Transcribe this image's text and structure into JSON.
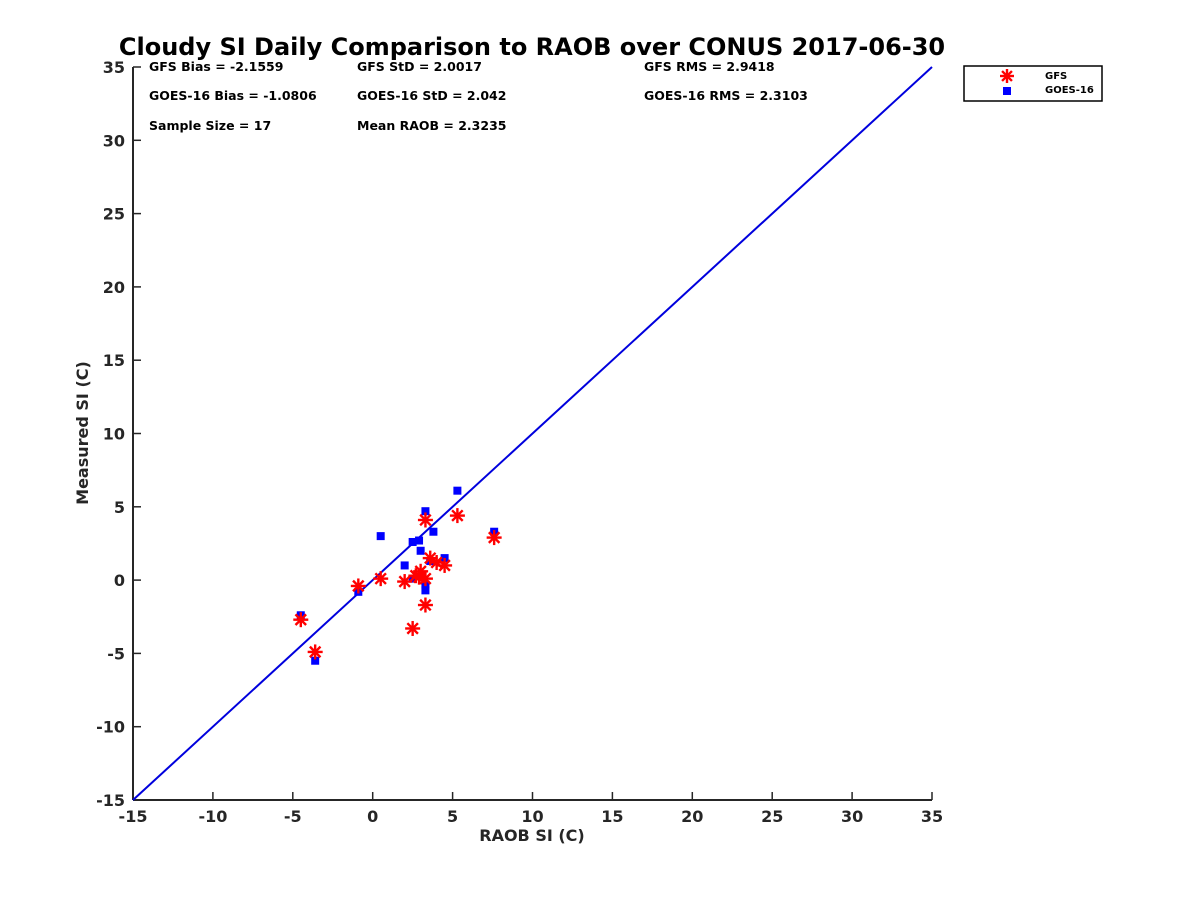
{
  "chart_data": {
    "type": "scatter",
    "title": "Cloudy SI Daily Comparison to RAOB over CONUS 2017-06-30",
    "xlabel": "RAOB SI (C)",
    "ylabel": "Measured SI (C)",
    "xlim": [
      -15,
      35
    ],
    "ylim": [
      -15,
      35
    ],
    "xticks": [
      -15,
      -10,
      -5,
      0,
      5,
      10,
      15,
      20,
      25,
      30,
      35
    ],
    "yticks": [
      -15,
      -10,
      -5,
      0,
      5,
      10,
      15,
      20,
      25,
      30,
      35
    ],
    "one_to_one_line": {
      "from": [
        -15,
        -15
      ],
      "to": [
        35,
        35
      ],
      "color": "#0000dd"
    },
    "stats": [
      {
        "label": "GFS Bias = -2.1559",
        "row": 0,
        "col": 0
      },
      {
        "label": "GFS StD = 2.0017",
        "row": 0,
        "col": 1
      },
      {
        "label": "GFS RMS = 2.9418",
        "row": 0,
        "col": 2
      },
      {
        "label": "GOES-16 Bias = -1.0806",
        "row": 1,
        "col": 0
      },
      {
        "label": "GOES-16 StD = 2.042",
        "row": 1,
        "col": 1
      },
      {
        "label": "GOES-16 RMS = 2.3103",
        "row": 1,
        "col": 2
      },
      {
        "label": "Sample Size = 17",
        "row": 2,
        "col": 0
      },
      {
        "label": "Mean RAOB = 2.3235",
        "row": 2,
        "col": 1
      }
    ],
    "legend": {
      "position": "top-right-outside",
      "entries": [
        "GFS",
        "GOES-16"
      ]
    },
    "series": [
      {
        "name": "GFS",
        "marker": "asterisk",
        "color": "#ff0000",
        "points": [
          [
            -4.5,
            -2.7
          ],
          [
            -3.6,
            -4.9
          ],
          [
            -0.9,
            -0.4
          ],
          [
            0.5,
            0.1
          ],
          [
            2.0,
            -0.1
          ],
          [
            2.5,
            -3.3
          ],
          [
            2.7,
            0.3
          ],
          [
            3.0,
            0.6
          ],
          [
            3.3,
            0.1
          ],
          [
            3.3,
            -1.7
          ],
          [
            3.3,
            4.1
          ],
          [
            3.6,
            1.5
          ],
          [
            4.0,
            1.2
          ],
          [
            4.5,
            1.0
          ],
          [
            5.3,
            4.4
          ],
          [
            7.6,
            2.9
          ],
          [
            2.9,
            0.2
          ]
        ]
      },
      {
        "name": "GOES-16",
        "marker": "square",
        "color": "#0000ff",
        "points": [
          [
            -4.5,
            -2.4
          ],
          [
            -3.6,
            -5.5
          ],
          [
            -0.9,
            -0.8
          ],
          [
            0.5,
            3.0
          ],
          [
            2.0,
            1.0
          ],
          [
            2.5,
            2.6
          ],
          [
            2.5,
            0.1
          ],
          [
            2.9,
            2.7
          ],
          [
            3.0,
            2.0
          ],
          [
            3.3,
            4.7
          ],
          [
            3.3,
            -0.3
          ],
          [
            3.3,
            -0.7
          ],
          [
            3.6,
            1.3
          ],
          [
            3.8,
            3.3
          ],
          [
            4.5,
            1.5
          ],
          [
            5.3,
            6.1
          ],
          [
            7.6,
            3.3
          ]
        ]
      }
    ]
  }
}
